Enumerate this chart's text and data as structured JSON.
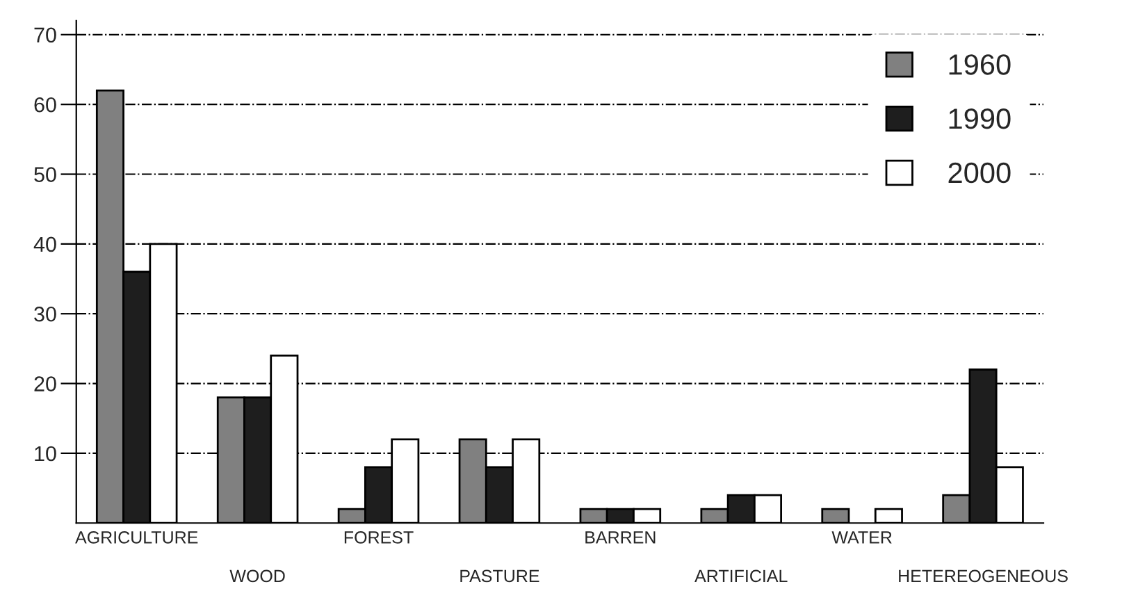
{
  "chart_data": {
    "type": "bar",
    "categories": [
      "AGRICULTURE",
      "WOOD",
      "FOREST",
      "PASTURE",
      "BARREN",
      "ARTIFICIAL",
      "WATER",
      "HETEREOGENEOUS"
    ],
    "series": [
      {
        "name": "1960",
        "color": "#808080",
        "values": [
          62,
          18,
          2,
          12,
          2,
          2,
          2,
          4
        ]
      },
      {
        "name": "1990",
        "color": "#1e1e1e",
        "values": [
          36,
          18,
          8,
          8,
          2,
          4,
          null,
          22
        ]
      },
      {
        "name": "2000",
        "color": "#ffffff",
        "values": [
          40,
          24,
          12,
          12,
          2,
          4,
          2,
          8
        ]
      }
    ],
    "ylim": [
      0,
      72
    ],
    "yticks": [
      10,
      20,
      30,
      40,
      50,
      60,
      70
    ],
    "grid": "y",
    "legend": "top right"
  }
}
